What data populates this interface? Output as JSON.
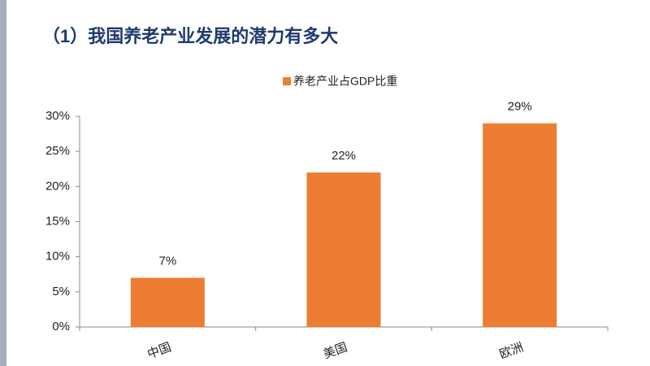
{
  "chart_data": {
    "type": "bar",
    "title": "（1）我国养老产业发展的潜力有多大",
    "categories": [
      "中国",
      "美国",
      "欧洲"
    ],
    "series": [
      {
        "name": "养老产业占GDP比重",
        "color": "#ed7d31",
        "values": [
          7,
          22,
          29
        ],
        "value_labels": [
          "7%",
          "22%",
          "29%"
        ]
      }
    ],
    "ylim": [
      0,
      30
    ],
    "yticks": [
      {
        "value": 0,
        "label": "0%"
      },
      {
        "value": 5,
        "label": "5%"
      },
      {
        "value": 10,
        "label": "10%"
      },
      {
        "value": 15,
        "label": "15%"
      },
      {
        "value": 20,
        "label": "20%"
      },
      {
        "value": 25,
        "label": "25%"
      },
      {
        "value": 30,
        "label": "30%"
      }
    ],
    "grid": false,
    "legend": "top"
  }
}
